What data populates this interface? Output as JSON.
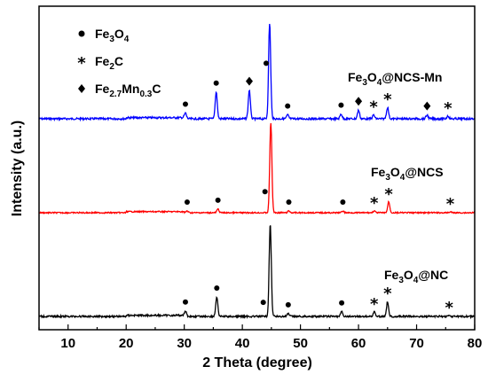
{
  "chart_data": {
    "type": "line",
    "xlabel": "2 Theta (degree)",
    "ylabel": "Intensity (a.u.)",
    "xlim": [
      5,
      80
    ],
    "xticks": [
      10,
      20,
      30,
      40,
      50,
      60,
      70,
      80
    ],
    "y_ticks_shown": false,
    "legend": {
      "placement": "top-left",
      "entries": [
        {
          "symbol": "circle",
          "base": "Fe",
          "sub1": "3",
          "mid": "O",
          "sub2": "4",
          "tail": ""
        },
        {
          "symbol": "star",
          "base": "Fe",
          "sub1": "2",
          "mid": "C",
          "sub2": "",
          "tail": ""
        },
        {
          "symbol": "diamond",
          "base": "Fe",
          "sub1": "2.7",
          "mid": "Mn",
          "sub2": "0.3",
          "tail": "C"
        }
      ]
    },
    "series": [
      {
        "name": "Fe3O4@NCS-Mn",
        "label_parts": {
          "pre": "Fe",
          "s1": "3",
          "mid": "O",
          "s2": "4",
          "post": "@NCS-Mn"
        },
        "color": "#0000ff",
        "baseline": 0,
        "peaks": [
          {
            "x": 30.2,
            "h": 0.06
          },
          {
            "x": 35.5,
            "h": 0.28
          },
          {
            "x": 41.2,
            "h": 0.3
          },
          {
            "x": 44.7,
            "h": 1.0
          },
          {
            "x": 47.8,
            "h": 0.04
          },
          {
            "x": 57.0,
            "h": 0.05
          },
          {
            "x": 60.0,
            "h": 0.09
          },
          {
            "x": 62.6,
            "h": 0.04
          },
          {
            "x": 65.0,
            "h": 0.12
          },
          {
            "x": 71.8,
            "h": 0.04
          },
          {
            "x": 75.4,
            "h": 0.03
          }
        ],
        "markers": [
          {
            "x": 30.2,
            "symbol": "circle"
          },
          {
            "x": 35.5,
            "symbol": "circle"
          },
          {
            "x": 41.2,
            "symbol": "diamond"
          },
          {
            "x": 44.1,
            "symbol": "circle"
          },
          {
            "x": 47.8,
            "symbol": "circle"
          },
          {
            "x": 57.0,
            "symbol": "circle"
          },
          {
            "x": 60.0,
            "symbol": "diamond"
          },
          {
            "x": 62.6,
            "symbol": "star"
          },
          {
            "x": 65.0,
            "symbol": "star"
          },
          {
            "x": 71.8,
            "symbol": "diamond"
          },
          {
            "x": 75.4,
            "symbol": "star"
          }
        ]
      },
      {
        "name": "Fe3O4@NCS",
        "label_parts": {
          "pre": "Fe",
          "s1": "3",
          "mid": "O",
          "s2": "4",
          "post": "@NCS"
        },
        "color": "#ff0000",
        "baseline": 0,
        "peaks": [
          {
            "x": 30.5,
            "h": 0.02
          },
          {
            "x": 35.8,
            "h": 0.04
          },
          {
            "x": 44.9,
            "h": 1.0
          },
          {
            "x": 48.0,
            "h": 0.02
          },
          {
            "x": 57.3,
            "h": 0.02
          },
          {
            "x": 62.7,
            "h": 0.02
          },
          {
            "x": 65.2,
            "h": 0.12
          },
          {
            "x": 75.8,
            "h": 0.01
          }
        ],
        "markers": [
          {
            "x": 30.5,
            "symbol": "circle"
          },
          {
            "x": 35.8,
            "symbol": "circle"
          },
          {
            "x": 43.9,
            "symbol": "circle"
          },
          {
            "x": 48.0,
            "symbol": "circle"
          },
          {
            "x": 57.3,
            "symbol": "circle"
          },
          {
            "x": 62.7,
            "symbol": "star"
          },
          {
            "x": 65.2,
            "symbol": "star"
          },
          {
            "x": 75.8,
            "symbol": "star"
          }
        ]
      },
      {
        "name": "Fe3O4@NC",
        "label_parts": {
          "pre": "Fe",
          "s1": "3",
          "mid": "O",
          "s2": "4",
          "post": "@NC"
        },
        "color": "#000000",
        "baseline": 0,
        "peaks": [
          {
            "x": 30.2,
            "h": 0.06
          },
          {
            "x": 35.6,
            "h": 0.21
          },
          {
            "x": 44.8,
            "h": 1.0
          },
          {
            "x": 47.9,
            "h": 0.03
          },
          {
            "x": 57.1,
            "h": 0.05
          },
          {
            "x": 62.7,
            "h": 0.05
          },
          {
            "x": 65.0,
            "h": 0.16
          },
          {
            "x": 75.6,
            "h": 0.01
          }
        ],
        "markers": [
          {
            "x": 30.2,
            "symbol": "circle"
          },
          {
            "x": 35.6,
            "symbol": "circle"
          },
          {
            "x": 43.6,
            "symbol": "circle"
          },
          {
            "x": 47.9,
            "symbol": "circle"
          },
          {
            "x": 57.1,
            "symbol": "circle"
          },
          {
            "x": 62.7,
            "symbol": "star"
          },
          {
            "x": 65.0,
            "symbol": "star"
          },
          {
            "x": 75.6,
            "symbol": "star"
          }
        ]
      }
    ]
  }
}
